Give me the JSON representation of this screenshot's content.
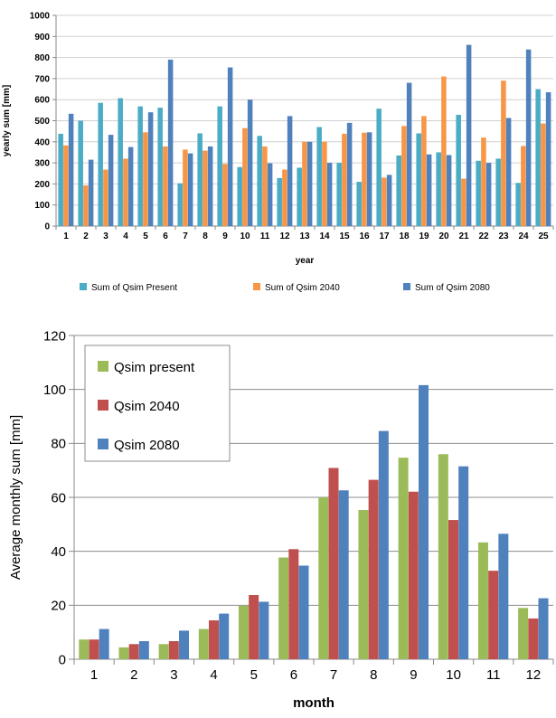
{
  "chart_data": [
    {
      "type": "bar",
      "xlabel": "year",
      "ylabel": "yearly sum [mm]",
      "ylim": [
        0,
        1000
      ],
      "yticks": [
        0,
        100,
        200,
        300,
        400,
        500,
        600,
        700,
        800,
        900,
        1000
      ],
      "grid": true,
      "legend_position": "bottom",
      "categories": [
        "1",
        "2",
        "3",
        "4",
        "5",
        "6",
        "7",
        "8",
        "9",
        "10",
        "11",
        "12",
        "13",
        "14",
        "15",
        "16",
        "17",
        "18",
        "19",
        "20",
        "21",
        "22",
        "23",
        "24",
        "25"
      ],
      "series": [
        {
          "name": "Sum of Qsim Present",
          "color": "#4bacc6",
          "values": [
            438,
            500,
            585,
            607,
            568,
            562,
            203,
            440,
            568,
            280,
            428,
            228,
            277,
            470,
            300,
            210,
            557,
            335,
            440,
            350,
            528,
            310,
            320,
            205,
            650
          ]
        },
        {
          "name": "Sum of Qsim 2040",
          "color": "#f79646",
          "values": [
            383,
            193,
            268,
            320,
            445,
            378,
            363,
            358,
            295,
            465,
            378,
            268,
            400,
            400,
            438,
            443,
            230,
            475,
            522,
            710,
            225,
            420,
            690,
            380,
            487
          ]
        },
        {
          "name": "Sum of Qsim 2080",
          "color": "#4f81bd",
          "values": [
            533,
            315,
            433,
            375,
            540,
            790,
            345,
            378,
            753,
            600,
            298,
            522,
            400,
            300,
            490,
            445,
            243,
            680,
            340,
            337,
            860,
            300,
            513,
            838,
            635
          ]
        }
      ]
    },
    {
      "type": "bar",
      "xlabel": "month",
      "ylabel": "Average monthly sum [mm]",
      "ylim": [
        0,
        120
      ],
      "yticks": [
        0,
        20,
        40,
        60,
        80,
        100,
        120
      ],
      "grid": true,
      "legend_position": "top-left",
      "categories": [
        "1",
        "2",
        "3",
        "4",
        "5",
        "6",
        "7",
        "8",
        "9",
        "10",
        "11",
        "12"
      ],
      "series": [
        {
          "name": "Qsim present",
          "color": "#9bbb59",
          "values": [
            7.3,
            4.4,
            5.6,
            11.2,
            19.8,
            37.7,
            60.0,
            55.3,
            74.7,
            76.0,
            43.3,
            19.0
          ]
        },
        {
          "name": "Qsim 2040",
          "color": "#c0504d",
          "values": [
            7.3,
            5.6,
            6.7,
            14.4,
            23.8,
            40.8,
            70.9,
            66.5,
            62.1,
            51.6,
            32.8,
            15.1
          ]
        },
        {
          "name": "Qsim 2080",
          "color": "#4f81bd",
          "values": [
            11.2,
            6.7,
            10.6,
            16.9,
            21.3,
            34.7,
            62.6,
            84.6,
            101.6,
            71.5,
            46.5,
            22.6
          ]
        }
      ]
    }
  ]
}
